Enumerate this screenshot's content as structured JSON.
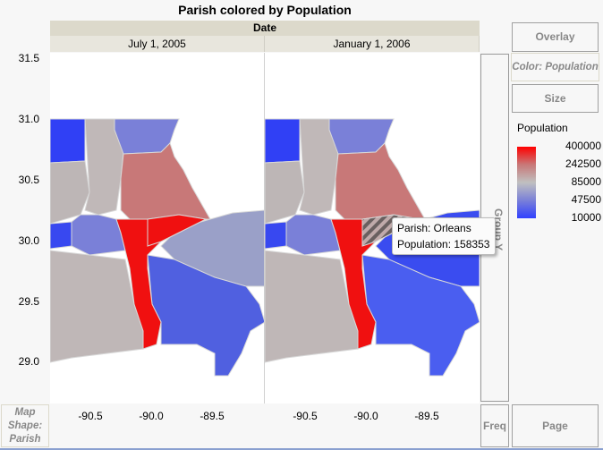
{
  "title": "Parish colored by Population",
  "header": {
    "group_x": "Date",
    "columns": [
      "July 1, 2005",
      "January 1, 2006"
    ]
  },
  "y_axis": {
    "ticks": [
      "31.5",
      "31.0",
      "30.5",
      "30.0",
      "29.5",
      "29.0"
    ]
  },
  "x_axis": {
    "ticks": [
      "-90.5",
      "-90.0",
      "-89.5"
    ]
  },
  "controls": {
    "overlay": "Overlay",
    "color": "Color: Population",
    "size": "Size",
    "group_y": "Group Y",
    "map_shape": "Map Shape: Parish",
    "freq": "Freq",
    "page": "Page"
  },
  "legend": {
    "title": "Population",
    "labels": [
      "400000",
      "242500",
      "85000",
      "47500",
      "10000"
    ],
    "colors": [
      "#ff0000",
      "#c0c0c0",
      "#3040ff"
    ]
  },
  "tooltip": {
    "line1": "Parish: Orleans",
    "line2": "Population: 158353"
  }
}
